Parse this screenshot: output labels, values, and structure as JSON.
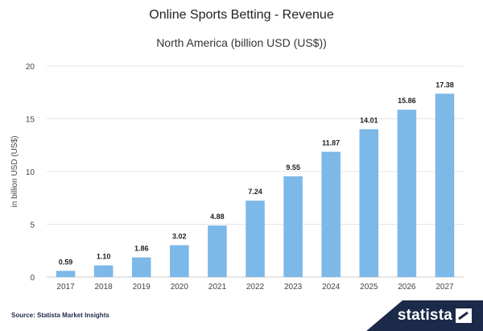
{
  "chart_data": {
    "type": "bar",
    "title": "Online Sports Betting - Revenue",
    "subtitle": "North America (billion USD (US$))",
    "ylabel": "in billion USD (US$)",
    "xlabel": "",
    "categories": [
      "2017",
      "2018",
      "2019",
      "2020",
      "2021",
      "2022",
      "2023",
      "2024",
      "2025",
      "2026",
      "2027"
    ],
    "values": [
      0.59,
      1.1,
      1.86,
      3.02,
      4.88,
      7.24,
      9.55,
      11.87,
      14.01,
      15.86,
      17.38
    ],
    "value_labels": [
      "0.59",
      "1.10",
      "1.86",
      "3.02",
      "4.88",
      "7.24",
      "9.55",
      "11.87",
      "14.01",
      "15.86",
      "17.38"
    ],
    "ylim": [
      0,
      20
    ],
    "yticks": [
      "0",
      "5",
      "10",
      "15",
      "20"
    ],
    "grid": true,
    "legend": "none",
    "colors": {
      "bar": "#7cb8e8",
      "grid": "#e6e6e6",
      "text": "#333333"
    }
  },
  "footer": {
    "source": "Source: Statista Market Insights",
    "brand": "statista",
    "brand_color": "#1b2a49"
  }
}
